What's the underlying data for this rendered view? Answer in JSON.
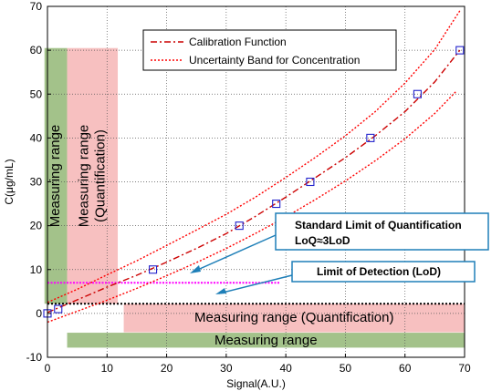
{
  "chart_data": {
    "type": "line",
    "xlabel": "Signal(A.U.)",
    "ylabel": "C(μg/mL)",
    "xlim": [
      0,
      70
    ],
    "ylim": [
      -10,
      70
    ],
    "xticks": [
      0,
      10,
      20,
      30,
      40,
      50,
      60,
      70
    ],
    "yticks": [
      -10,
      0,
      10,
      20,
      30,
      40,
      50,
      60,
      70
    ],
    "grid": true,
    "legend_position": "top-right",
    "legend": [
      {
        "label": "Calibration Function",
        "style": "dash-dot",
        "color": "#cc0000"
      },
      {
        "label": "Uncertainty Band for Concentration",
        "style": "dotted",
        "color": "#ff0000"
      }
    ],
    "calibration_points": {
      "x": [
        0,
        1.8,
        17.7,
        32.2,
        38.4,
        44.1,
        54.2,
        62.1,
        69.2
      ],
      "y": [
        0,
        1,
        10,
        20,
        25,
        30,
        40,
        50,
        60
      ],
      "marker": "square",
      "color": "#2222cc"
    },
    "series": [
      {
        "name": "Calibration Function",
        "x": [
          0,
          5,
          10,
          15,
          20,
          25,
          30,
          35,
          40,
          45,
          50,
          55,
          60,
          65,
          69.2
        ],
        "y": [
          0.2,
          3.1,
          6,
          8.7,
          11.7,
          14.8,
          18.2,
          22.2,
          26.5,
          31,
          35.5,
          40.5,
          46,
          52.8,
          60
        ],
        "color": "#cc0000",
        "style": "dash-dot"
      },
      {
        "name": "Uncertainty Band (upper)",
        "x": [
          0,
          5,
          10,
          15,
          20,
          25,
          30,
          35,
          40,
          45,
          50,
          55,
          60,
          65,
          69.2
        ],
        "y": [
          2.5,
          5.5,
          8.8,
          12,
          15.5,
          19,
          22.6,
          26.6,
          31,
          35.6,
          40.5,
          46,
          52.5,
          60.2,
          69
        ],
        "color": "#ff0000",
        "style": "dotted"
      },
      {
        "name": "Uncertainty Band (lower)",
        "x": [
          0,
          5,
          10,
          15,
          20,
          25,
          30,
          35,
          40,
          45,
          50,
          55,
          60,
          65,
          68.5
        ],
        "y": [
          -2,
          0.5,
          3,
          5.7,
          8.6,
          11.6,
          14.8,
          18.3,
          22,
          26,
          30.2,
          34.8,
          39.8,
          45.6,
          50.5
        ],
        "color": "#ff0000",
        "style": "dotted"
      }
    ],
    "reference_lines": [
      {
        "name": "Limit of Detection",
        "y": 7,
        "x_range": [
          0,
          39
        ],
        "color": "#ff00ff",
        "style": "dotted"
      },
      {
        "name": "Quantification baseline",
        "y": 2.2,
        "x_range": [
          0,
          70
        ],
        "color": "#000000",
        "style": "dotted"
      }
    ],
    "shaded_regions": [
      {
        "name": "vertical-measuring-range",
        "x_range": [
          -0.5,
          3.3
        ],
        "y_range": [
          2.2,
          60.5
        ],
        "color": "#a3c28a"
      },
      {
        "name": "vertical-quantification-range",
        "x_range": [
          3.3,
          11.8
        ],
        "y_range": [
          2.2,
          60.5
        ],
        "color": "#f7c0c0"
      },
      {
        "name": "horizontal-quantification-range",
        "x_range": [
          12.8,
          70
        ],
        "y_range": [
          -4.3,
          2.2
        ],
        "color": "#f7c0c0"
      },
      {
        "name": "horizontal-measuring-range",
        "x_range": [
          3.3,
          70
        ],
        "y_range": [
          -7.8,
          -4.4
        ],
        "color": "#a3c28a"
      }
    ],
    "annotations": {
      "vertical_measuring_range": "Measuring range",
      "vertical_quantification_line1": "Measuring range",
      "vertical_quantification_line2": "(Quantification)",
      "horizontal_quantification": "Measuring range (Quantification)",
      "horizontal_measuring_range": "Measuring range",
      "loq_line1": "Standard Limit of Quantification",
      "loq_line2": "LoQ≈3LoD",
      "lod": "Limit of Detection (LoD)",
      "callout_color": "#1e7fb8"
    }
  }
}
